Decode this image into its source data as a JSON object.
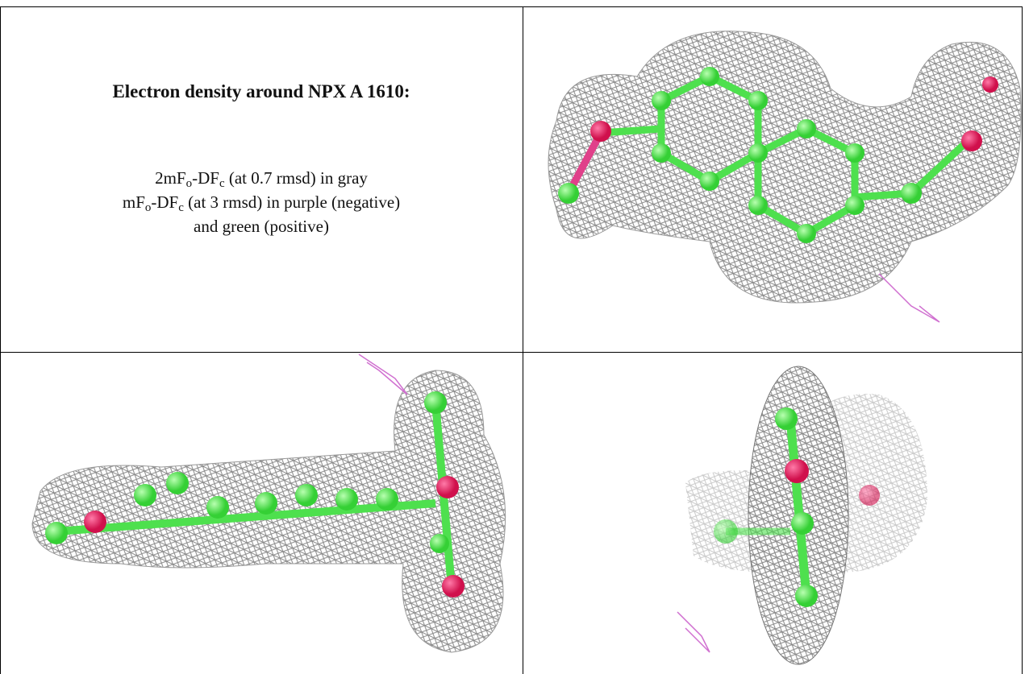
{
  "title": "Electron density around NPX A 1610:",
  "caption": {
    "lines": [
      [
        "2mF",
        "o",
        "-DF",
        "c",
        " (at 0.7 rmsd) in gray"
      ],
      [
        "mF",
        "o",
        "-DF",
        "c",
        " (at 3 rmsd) in purple (negative)"
      ],
      [
        "and green (positive)"
      ]
    ]
  }
}
